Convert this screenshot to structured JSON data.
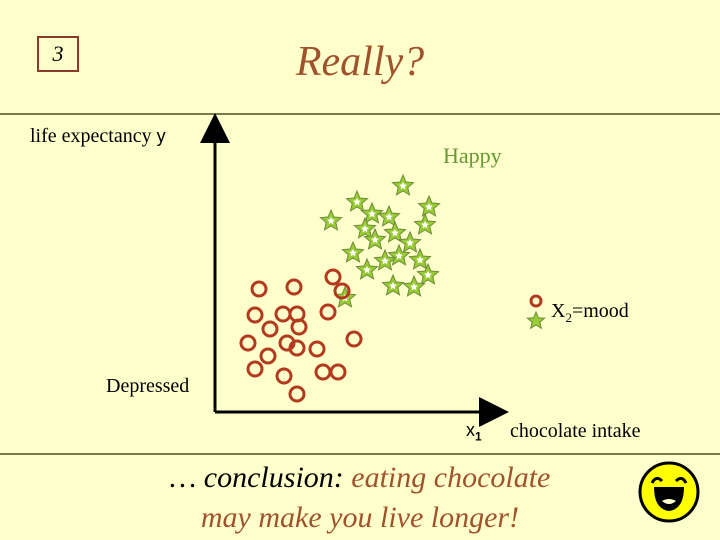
{
  "slide": {
    "number": "3",
    "title": "Really?"
  },
  "chart_data": {
    "type": "scatter",
    "ylabel": "life expectancy",
    "y_axis_letter": "y",
    "xlabel": "chocolate intake",
    "x_axis_letter": "x",
    "x_axis_subscript": "1",
    "annotations": {
      "top": "Happy",
      "bottom": "Depressed"
    },
    "legend": {
      "text": "X",
      "subscript": "2",
      "suffix": "=mood"
    },
    "series": [
      {
        "marker": "star",
        "color": "#99CC33",
        "points": [
          [
            403,
            186
          ],
          [
            357,
            202
          ],
          [
            429,
            207
          ],
          [
            372,
            214
          ],
          [
            331,
            221
          ],
          [
            389,
            217
          ],
          [
            425,
            225
          ],
          [
            365,
            229
          ],
          [
            395,
            233
          ],
          [
            410,
            243
          ],
          [
            375,
            240
          ],
          [
            353,
            253
          ],
          [
            399,
            256
          ],
          [
            385,
            261
          ],
          [
            420,
            260
          ],
          [
            367,
            270
          ],
          [
            428,
            275
          ],
          [
            393,
            286
          ],
          [
            414,
            287
          ],
          [
            345,
            298
          ]
        ]
      },
      {
        "marker": "circle",
        "color": "#B33A1E",
        "points": [
          [
            259,
            289
          ],
          [
            294,
            287
          ],
          [
            333,
            277
          ],
          [
            342,
            291
          ],
          [
            255,
            315
          ],
          [
            283,
            314
          ],
          [
            297,
            314
          ],
          [
            328,
            312
          ],
          [
            270,
            329
          ],
          [
            299,
            327
          ],
          [
            248,
            343
          ],
          [
            287,
            343
          ],
          [
            354,
            339
          ],
          [
            268,
            356
          ],
          [
            297,
            348
          ],
          [
            317,
            349
          ],
          [
            255,
            369
          ],
          [
            284,
            376
          ],
          [
            323,
            372
          ],
          [
            338,
            372
          ],
          [
            297,
            394
          ]
        ]
      }
    ],
    "legend_marker_circle_color": "#B33A1E",
    "legend_marker_star_color": "#99CC33"
  },
  "conclusion": {
    "part1": "… conclusion:",
    "part2": "eating chocolate",
    "line2": "may make you live longer!"
  },
  "icons": {
    "smiley": "laughing-face-icon"
  }
}
